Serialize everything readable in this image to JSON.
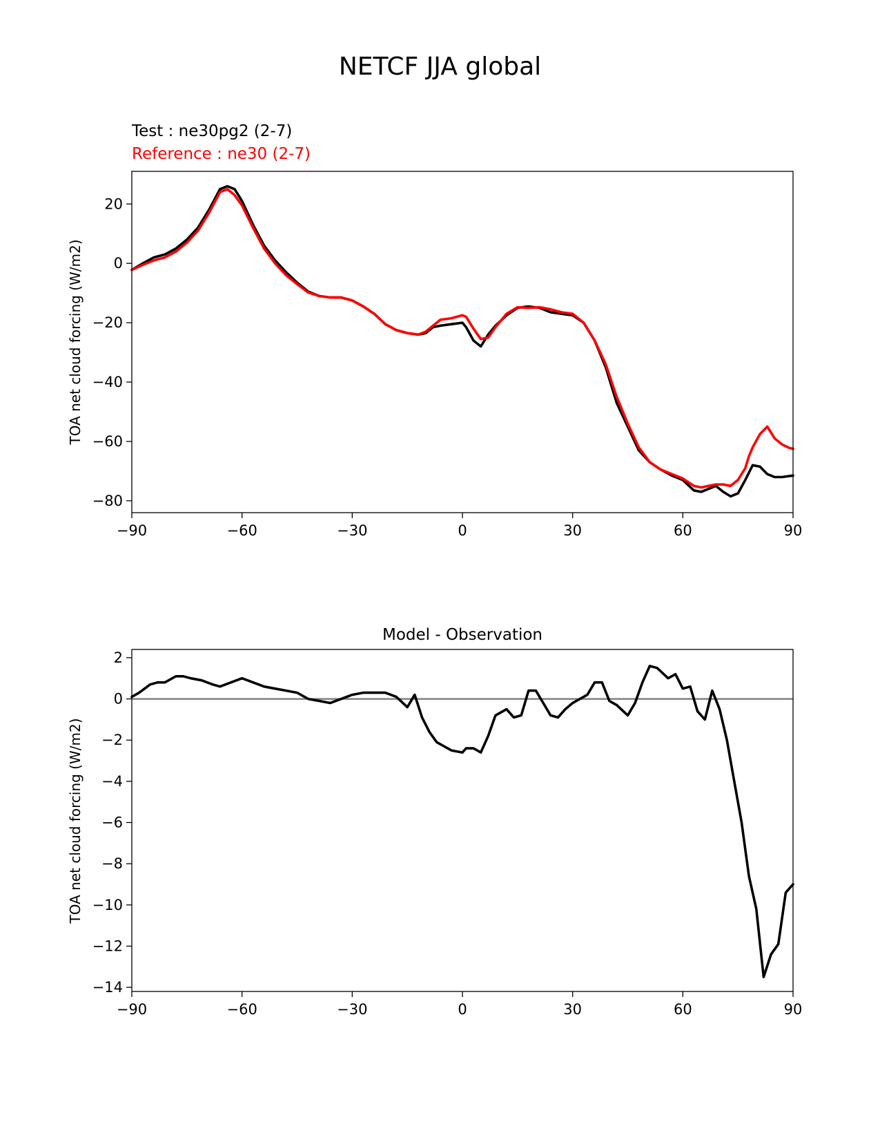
{
  "figure": {
    "title": "NETCF JJA global"
  },
  "chart_data": [
    {
      "type": "line",
      "title": "",
      "annotations": [
        {
          "text": "Test : ne30pg2 (2-7)",
          "color": "#000000"
        },
        {
          "text": "Reference : ne30 (2-7)",
          "color": "#ff0000"
        }
      ],
      "xlabel": "",
      "ylabel": "TOA net cloud forcing (W/m2)",
      "xlim": [
        -90,
        90
      ],
      "ylim": [
        -84,
        31
      ],
      "xticks": [
        -90,
        -60,
        -30,
        0,
        30,
        60,
        90
      ],
      "yticks": [
        -80,
        -60,
        -40,
        -20,
        0,
        20
      ],
      "grid": false,
      "series": [
        {
          "color": "#000000",
          "x": [
            -90,
            -87,
            -84,
            -81,
            -78,
            -75,
            -72,
            -69,
            -66,
            -64,
            -62,
            -60,
            -57,
            -54,
            -51,
            -48,
            -45,
            -42,
            -39,
            -36,
            -33,
            -30,
            -27,
            -24,
            -21,
            -18,
            -15,
            -12,
            -10,
            -8,
            -6,
            -3,
            0,
            1,
            3,
            5,
            7,
            9,
            12,
            15,
            18,
            21,
            24,
            27,
            30,
            33,
            36,
            39,
            42,
            45,
            48,
            51,
            54,
            57,
            60,
            63,
            65,
            67,
            69,
            71,
            73,
            75,
            77,
            79,
            81,
            83,
            85,
            87,
            90
          ],
          "values": [
            -2.2,
            0,
            2,
            3,
            5,
            8,
            12,
            18,
            25,
            26,
            25,
            21,
            13,
            6,
            1,
            -3,
            -6.5,
            -9.5,
            -11,
            -11.5,
            -11.5,
            -12.5,
            -14.5,
            -17,
            -20.5,
            -22.5,
            -23.5,
            -24,
            -23.5,
            -21.5,
            -21,
            -20.5,
            -20,
            -21.5,
            -26,
            -28,
            -24,
            -21,
            -17.5,
            -15,
            -14.5,
            -15,
            -16.5,
            -17,
            -17.5,
            -20,
            -26,
            -35,
            -47,
            -55,
            -63,
            -67,
            -69.5,
            -71.5,
            -73,
            -76.5,
            -77,
            -76,
            -75,
            -77,
            -78.5,
            -77.5,
            -73,
            -68,
            -68.5,
            -71,
            -72,
            -72,
            -71.5
          ]
        },
        {
          "color": "#ff0000",
          "x": [
            -90,
            -87,
            -84,
            -81,
            -78,
            -75,
            -72,
            -69,
            -66,
            -64,
            -62,
            -60,
            -57,
            -54,
            -51,
            -48,
            -45,
            -42,
            -39,
            -36,
            -33,
            -30,
            -27,
            -24,
            -21,
            -18,
            -15,
            -12,
            -10,
            -8,
            -6,
            -3,
            0,
            1,
            3,
            5,
            7,
            9,
            12,
            15,
            18,
            21,
            24,
            27,
            30,
            33,
            36,
            39,
            42,
            45,
            48,
            51,
            54,
            57,
            60,
            63,
            65,
            67,
            69,
            71,
            73,
            75,
            77,
            78,
            79,
            81,
            83,
            85,
            87,
            89,
            90
          ],
          "values": [
            -2.2,
            -0.5,
            1,
            2,
            4,
            7,
            11,
            17,
            24,
            25,
            23,
            19.5,
            12,
            5,
            0,
            -4,
            -7,
            -9.8,
            -11,
            -11.5,
            -11.5,
            -12.5,
            -14.5,
            -17,
            -20.5,
            -22.5,
            -23.5,
            -24,
            -23,
            -21,
            -19,
            -18.5,
            -17.5,
            -18,
            -22,
            -25.5,
            -25,
            -21.5,
            -17,
            -14.8,
            -15,
            -14.8,
            -15.5,
            -16.5,
            -17,
            -20,
            -26,
            -34,
            -45,
            -54,
            -62,
            -67,
            -69.5,
            -71,
            -72.5,
            -75,
            -75.5,
            -75,
            -74.5,
            -74.5,
            -75,
            -73,
            -69,
            -65,
            -62,
            -57.5,
            -55,
            -59,
            -61,
            -62.2,
            -62.5
          ]
        }
      ]
    },
    {
      "type": "line",
      "title": "Model - Observation",
      "xlabel": "",
      "ylabel": "TOA net cloud forcing (W/m2)",
      "xlim": [
        -90,
        90
      ],
      "ylim": [
        -14.2,
        2.4
      ],
      "xticks": [
        -90,
        -60,
        -30,
        0,
        30,
        60,
        90
      ],
      "yticks": [
        -14,
        -12,
        -10,
        -8,
        -6,
        -4,
        -2,
        0,
        2
      ],
      "reference_line": {
        "y": 0,
        "color": "#808080"
      },
      "grid": false,
      "series": [
        {
          "color": "#000000",
          "x": [
            -90,
            -88,
            -85,
            -83,
            -81,
            -78,
            -76,
            -74,
            -71,
            -68,
            -66,
            -63,
            -60,
            -57,
            -54,
            -51,
            -48,
            -45,
            -42,
            -39,
            -36,
            -33,
            -30,
            -27,
            -24,
            -21,
            -18,
            -15,
            -13,
            -11,
            -9,
            -7,
            -5,
            -3,
            0,
            1,
            3,
            5,
            7,
            9,
            12,
            14,
            16,
            18,
            20,
            22,
            24,
            26,
            28,
            30,
            32,
            34,
            36,
            38,
            40,
            42,
            45,
            47,
            49,
            51,
            53,
            56,
            58,
            60,
            62,
            64,
            66,
            68,
            70,
            72,
            74,
            76,
            78,
            80,
            82,
            84,
            86,
            88,
            90
          ],
          "values": [
            0.1,
            0.3,
            0.7,
            0.8,
            0.8,
            1.1,
            1.1,
            1.0,
            0.9,
            0.7,
            0.6,
            0.8,
            1.0,
            0.8,
            0.6,
            0.5,
            0.4,
            0.3,
            0.0,
            -0.1,
            -0.2,
            0.0,
            0.2,
            0.3,
            0.3,
            0.3,
            0.1,
            -0.4,
            0.2,
            -0.9,
            -1.6,
            -2.1,
            -2.3,
            -2.5,
            -2.6,
            -2.4,
            -2.4,
            -2.6,
            -1.8,
            -0.8,
            -0.5,
            -0.9,
            -0.8,
            0.4,
            0.4,
            -0.2,
            -0.8,
            -0.9,
            -0.5,
            -0.2,
            0.0,
            0.2,
            0.8,
            0.8,
            -0.1,
            -0.3,
            -0.8,
            -0.2,
            0.8,
            1.6,
            1.5,
            1.0,
            1.2,
            0.5,
            0.6,
            -0.6,
            -1.0,
            0.4,
            -0.5,
            -2.0,
            -4.0,
            -6.0,
            -8.6,
            -10.2,
            -13.5,
            -12.4,
            -11.9,
            -9.4,
            -9.0
          ]
        }
      ]
    }
  ]
}
